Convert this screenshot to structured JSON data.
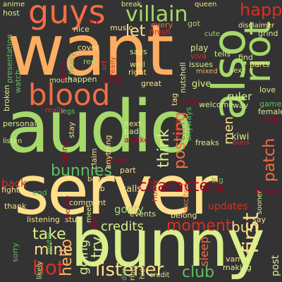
{
  "palette": {
    "background": "#333333",
    "dark_red": "#a50026",
    "red": "#d73027",
    "orange": "#f46d43",
    "light_orange": "#fdae61",
    "pale_yellow": "#fee08b",
    "yellow_green": "#d9ef8b",
    "light_green": "#a6d96a",
    "green": "#66bd63",
    "dark_green": "#1a9850"
  },
  "words": [
    {
      "text": "want",
      "color": "#fdae61"
    },
    {
      "text": "audio",
      "color": "#a6d96a"
    },
    {
      "text": "server",
      "color": "#fee08b"
    },
    {
      "text": "bunny",
      "color": "#d9ef8b"
    },
    {
      "text": "also",
      "color": "#a6d96a"
    },
    {
      "text": "riot",
      "color": "#a6d96a"
    },
    {
      "text": "blood",
      "color": "#f46d43"
    },
    {
      "text": "guys",
      "color": "#f46d43"
    },
    {
      "text": "villain",
      "color": "#a6d96a"
    },
    {
      "text": "characters",
      "color": "#a50026"
    },
    {
      "text": "bunnies",
      "color": "#66bd63"
    },
    {
      "text": "think",
      "color": "#d9ef8b"
    },
    {
      "text": "posting",
      "color": "#f46d43"
    },
    {
      "text": "first",
      "color": "#fee08b"
    },
    {
      "text": "patch",
      "color": "#f46d43"
    },
    {
      "text": "happy",
      "color": "#d73027"
    },
    {
      "text": "men",
      "color": "#fee08b"
    },
    {
      "text": "let",
      "color": "#fee08b"
    },
    {
      "text": "listener",
      "color": "#fee08b"
    },
    {
      "text": "club",
      "color": "#66bd63"
    },
    {
      "text": "credits",
      "color": "#d9ef8b"
    },
    {
      "text": "moment",
      "color": "#d73027"
    },
    {
      "text": "bun",
      "color": "#fee08b"
    },
    {
      "text": "take",
      "color": "#d9ef8b"
    },
    {
      "text": "mine",
      "color": "#fee08b"
    },
    {
      "text": "hello",
      "color": "#fdae61"
    },
    {
      "text": "hot",
      "color": "#d73027"
    },
    {
      "text": "going",
      "color": "#d9ef8b"
    },
    {
      "text": "try",
      "color": "#d9ef8b"
    },
    {
      "text": "goofy",
      "color": "#a6d96a"
    },
    {
      "text": "updates",
      "color": "#d73027"
    },
    {
      "text": "sleep",
      "color": "#f46d43"
    },
    {
      "text": "calls",
      "color": "#fee08b"
    },
    {
      "text": "post",
      "color": "#d9ef8b"
    },
    {
      "text": "events",
      "color": "#d9ef8b"
    },
    {
      "text": "belong",
      "color": "#fee08b"
    },
    {
      "text": "listening",
      "color": "#fee08b"
    },
    {
      "text": "stuff",
      "color": "#fee08b"
    },
    {
      "text": "back",
      "color": "#d73027"
    },
    {
      "text": "fights",
      "color": "#fee08b"
    },
    {
      "text": "end",
      "color": "#66bd63"
    },
    {
      "text": "thank",
      "color": "#fee08b"
    },
    {
      "text": "job",
      "color": "#fee08b"
    },
    {
      "text": "comment",
      "color": "#fee08b"
    },
    {
      "text": "meet",
      "color": "#d9ef8b"
    },
    {
      "text": "part",
      "color": "#fee08b"
    },
    {
      "text": "horny",
      "color": "#d73027"
    },
    {
      "text": "excited",
      "color": "#f46d43"
    },
    {
      "text": "big",
      "color": "#66bd63"
    },
    {
      "text": "please",
      "color": "#a50026"
    },
    {
      "text": "taken",
      "color": "#a50026"
    },
    {
      "text": "bang",
      "color": "#fee08b"
    },
    {
      "text": "awake",
      "color": "#a50026"
    },
    {
      "text": "bad",
      "color": "#d9ef8b"
    },
    {
      "text": "next",
      "color": "#fee08b"
    },
    {
      "text": "anything",
      "color": "#fee08b"
    },
    {
      "text": "claim",
      "color": "#fee08b"
    },
    {
      "text": "calling",
      "color": "#a50026"
    },
    {
      "text": "stay",
      "color": "#fee08b"
    },
    {
      "text": "personal",
      "color": "#d9ef8b"
    },
    {
      "text": "kiwi",
      "color": "#d9ef8b"
    },
    {
      "text": "ruler",
      "color": "#d9ef8b"
    },
    {
      "text": "give",
      "color": "#d9ef8b"
    },
    {
      "text": "freaks",
      "color": "#d9ef8b"
    },
    {
      "text": "anyways",
      "color": "#66bd63"
    },
    {
      "text": "make",
      "color": "#d73027"
    },
    {
      "text": "buns",
      "color": "#d73027"
    },
    {
      "text": "wolf",
      "color": "#a50026"
    },
    {
      "text": "games",
      "color": "#66bd63"
    },
    {
      "text": "female",
      "color": "#d9ef8b"
    },
    {
      "text": "love",
      "color": "#d9ef8b"
    },
    {
      "text": "way",
      "color": "#d9ef8b"
    },
    {
      "text": "welcome",
      "color": "#d9ef8b"
    },
    {
      "text": "since",
      "color": "#a50026"
    },
    {
      "text": "tag",
      "color": "#fee08b"
    },
    {
      "text": "great",
      "color": "#fee08b"
    },
    {
      "text": "chill",
      "color": "#a50026"
    },
    {
      "text": "happen",
      "color": "#d9ef8b"
    },
    {
      "text": "red",
      "color": "#a6d96a"
    },
    {
      "text": "cover",
      "color": "#fee08b"
    },
    {
      "text": "says",
      "color": "#d9ef8b"
    },
    {
      "text": "play",
      "color": "#d9ef8b"
    },
    {
      "text": "tells",
      "color": "#d9ef8b"
    },
    {
      "text": "viva",
      "color": "#d73027"
    },
    {
      "text": "issues",
      "color": "#d9ef8b"
    },
    {
      "text": "mixed",
      "color": "#fdae61"
    },
    {
      "text": "sex",
      "color": "#d9ef8b"
    },
    {
      "text": "find",
      "color": "#d9ef8b"
    },
    {
      "text": "parts",
      "color": "#fee08b"
    },
    {
      "text": "well",
      "color": "#d9ef8b"
    },
    {
      "text": "right",
      "color": "#fee08b"
    },
    {
      "text": "nutshell",
      "color": "#d9ef8b"
    },
    {
      "text": "anime",
      "color": "#d9ef8b"
    },
    {
      "text": "host",
      "color": "#d9ef8b"
    },
    {
      "text": "nice",
      "color": "#d9ef8b"
    },
    {
      "text": "music",
      "color": "#fee08b"
    },
    {
      "text": "every",
      "color": "#f46d43"
    },
    {
      "text": "finish",
      "color": "#d73027"
    },
    {
      "text": "got",
      "color": "#a6d96a"
    },
    {
      "text": "cute",
      "color": "#a6d96a"
    },
    {
      "text": "disclaimer",
      "color": "#fee08b"
    },
    {
      "text": "grind",
      "color": "#d9ef8b"
    },
    {
      "text": "break",
      "color": "#d9ef8b"
    },
    {
      "text": "queen",
      "color": "#fee08b"
    },
    {
      "text": "hey",
      "color": "#a50026"
    },
    {
      "text": "presentation",
      "color": "#66bd63"
    },
    {
      "text": "watch",
      "color": "#66bd63"
    },
    {
      "text": "broken",
      "color": "#d9ef8b"
    },
    {
      "text": "mouth",
      "color": "#d9ef8b"
    },
    {
      "text": "damn",
      "color": "#a50026"
    },
    {
      "text": "freaky",
      "color": "#66bd63"
    },
    {
      "text": "art",
      "color": "#d73027"
    },
    {
      "text": "really",
      "color": "#d73027"
    },
    {
      "text": "legs",
      "color": "#66bd63"
    },
    {
      "text": "sorry",
      "color": "#66bd63"
    },
    {
      "text": "likely",
      "color": "#d9ef8b"
    },
    {
      "text": "visitor",
      "color": "#66bd63"
    },
    {
      "text": "little",
      "color": "#a50026"
    },
    {
      "text": "roomie",
      "color": "#a50026"
    },
    {
      "text": "due",
      "color": "#66bd63"
    },
    {
      "text": "riots",
      "color": "#d9ef8b"
    },
    {
      "text": "credit",
      "color": "#d9ef8b"
    },
    {
      "text": "hidden",
      "color": "#d9ef8b"
    },
    {
      "text": "making",
      "color": "#d9ef8b"
    },
    {
      "text": "vamp",
      "color": "#fee08b"
    },
    {
      "text": "say",
      "color": "#fee08b"
    },
    {
      "text": "sooner",
      "color": "#d9ef8b"
    },
    {
      "text": "listen",
      "color": "#d9ef8b"
    }
  ]
}
